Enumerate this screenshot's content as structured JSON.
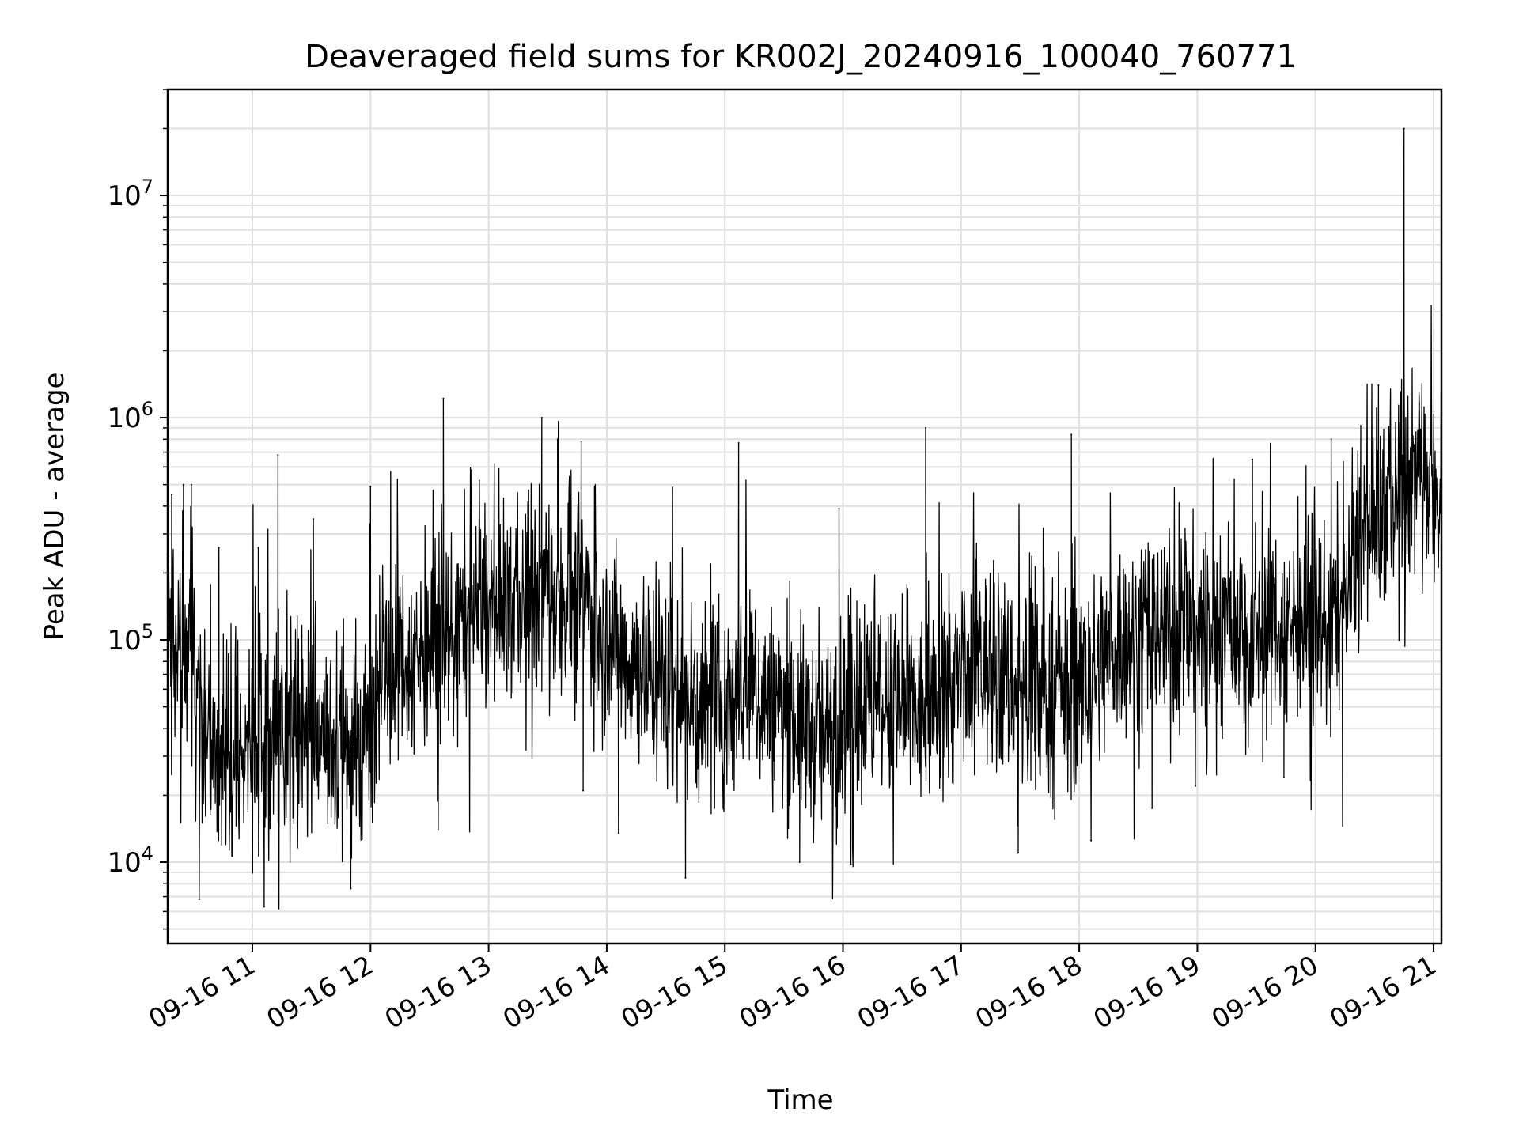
{
  "chart_data": {
    "type": "line",
    "title": "Deaveraged field sums for KR002J_20240916_100040_760771",
    "xlabel": "Time",
    "ylabel": "Peak ADU - average",
    "yscale": "log",
    "grid": true,
    "line_color": "#000000",
    "grid_color": "#e0e0e0",
    "xlim": [
      "2024-09-16 10:17",
      "2024-09-16 21:04"
    ],
    "ylim": [
      4300,
      30000000
    ],
    "x_ticks": [
      {
        "t": "2024-09-16 11:00",
        "label": "09-16 11"
      },
      {
        "t": "2024-09-16 12:00",
        "label": "09-16 12"
      },
      {
        "t": "2024-09-16 13:00",
        "label": "09-16 13"
      },
      {
        "t": "2024-09-16 14:00",
        "label": "09-16 14"
      },
      {
        "t": "2024-09-16 15:00",
        "label": "09-16 15"
      },
      {
        "t": "2024-09-16 16:00",
        "label": "09-16 16"
      },
      {
        "t": "2024-09-16 17:00",
        "label": "09-16 17"
      },
      {
        "t": "2024-09-16 18:00",
        "label": "09-16 18"
      },
      {
        "t": "2024-09-16 19:00",
        "label": "09-16 19"
      },
      {
        "t": "2024-09-16 20:00",
        "label": "09-16 20"
      },
      {
        "t": "2024-09-16 21:00",
        "label": "09-16 21"
      }
    ],
    "y_ticks": [
      {
        "value": 10000,
        "base": "10",
        "exp": "4"
      },
      {
        "value": 100000,
        "base": "10",
        "exp": "5"
      },
      {
        "value": 1000000,
        "base": "10",
        "exp": "6"
      },
      {
        "value": 10000000,
        "base": "10",
        "exp": "7"
      }
    ],
    "trend": [
      {
        "t": "2024-09-16 10:17",
        "y": 150000
      },
      {
        "t": "2024-09-16 10:25",
        "y": 100000
      },
      {
        "t": "2024-09-16 10:35",
        "y": 40000
      },
      {
        "t": "2024-09-16 10:45",
        "y": 28000
      },
      {
        "t": "2024-09-16 11:00",
        "y": 35000
      },
      {
        "t": "2024-09-16 11:20",
        "y": 40000
      },
      {
        "t": "2024-09-16 11:40",
        "y": 30000
      },
      {
        "t": "2024-09-16 11:55",
        "y": 35000
      },
      {
        "t": "2024-09-16 12:10",
        "y": 80000
      },
      {
        "t": "2024-09-16 12:30",
        "y": 90000
      },
      {
        "t": "2024-09-16 12:50",
        "y": 130000
      },
      {
        "t": "2024-09-16 13:10",
        "y": 140000
      },
      {
        "t": "2024-09-16 13:25",
        "y": 160000
      },
      {
        "t": "2024-09-16 13:40",
        "y": 180000
      },
      {
        "t": "2024-09-16 13:50",
        "y": 150000
      },
      {
        "t": "2024-09-16 14:05",
        "y": 90000
      },
      {
        "t": "2024-09-16 14:30",
        "y": 65000
      },
      {
        "t": "2024-09-16 14:50",
        "y": 45000
      },
      {
        "t": "2024-09-16 15:10",
        "y": 60000
      },
      {
        "t": "2024-09-16 15:35",
        "y": 45000
      },
      {
        "t": "2024-09-16 15:50",
        "y": 35000
      },
      {
        "t": "2024-09-16 16:10",
        "y": 50000
      },
      {
        "t": "2024-09-16 16:40",
        "y": 45000
      },
      {
        "t": "2024-09-16 16:55",
        "y": 60000
      },
      {
        "t": "2024-09-16 17:10",
        "y": 80000
      },
      {
        "t": "2024-09-16 17:30",
        "y": 60000
      },
      {
        "t": "2024-09-16 17:45",
        "y": 55000
      },
      {
        "t": "2024-09-16 18:05",
        "y": 65000
      },
      {
        "t": "2024-09-16 18:20",
        "y": 100000
      },
      {
        "t": "2024-09-16 18:50",
        "y": 110000
      },
      {
        "t": "2024-09-16 19:20",
        "y": 110000
      },
      {
        "t": "2024-09-16 19:40",
        "y": 120000
      },
      {
        "t": "2024-09-16 20:00",
        "y": 120000
      },
      {
        "t": "2024-09-16 20:15",
        "y": 140000
      },
      {
        "t": "2024-09-16 20:25",
        "y": 300000
      },
      {
        "t": "2024-09-16 20:40",
        "y": 450000
      },
      {
        "t": "2024-09-16 20:55",
        "y": 600000
      },
      {
        "t": "2024-09-16 21:04",
        "y": 550000
      }
    ],
    "spikes": [
      {
        "t": "2024-09-16 10:19",
        "y": 450000
      },
      {
        "t": "2024-09-16 10:25",
        "y": 500000
      },
      {
        "t": "2024-09-16 10:29",
        "y": 500000
      },
      {
        "t": "2024-09-16 10:33",
        "y": 6800
      },
      {
        "t": "2024-09-16 10:43",
        "y": 260000
      },
      {
        "t": "2024-09-16 11:03",
        "y": 260000
      },
      {
        "t": "2024-09-16 11:06",
        "y": 6300
      },
      {
        "t": "2024-09-16 11:13",
        "y": 680000
      },
      {
        "t": "2024-09-16 11:31",
        "y": 350000
      },
      {
        "t": "2024-09-16 11:50",
        "y": 7600
      },
      {
        "t": "2024-09-16 12:00",
        "y": 490000
      },
      {
        "t": "2024-09-16 12:37",
        "y": 1220000
      },
      {
        "t": "2024-09-16 12:51",
        "y": 580000
      },
      {
        "t": "2024-09-16 13:27",
        "y": 1000000
      },
      {
        "t": "2024-09-16 13:35",
        "y": 800000
      },
      {
        "t": "2024-09-16 13:47",
        "y": 780000
      },
      {
        "t": "2024-09-16 13:48",
        "y": 21000
      },
      {
        "t": "2024-09-16 14:06",
        "y": 13500
      },
      {
        "t": "2024-09-16 14:40",
        "y": 8500
      },
      {
        "t": "2024-09-16 15:07",
        "y": 770000
      },
      {
        "t": "2024-09-16 15:38",
        "y": 10000
      },
      {
        "t": "2024-09-16 15:58",
        "y": 390000
      },
      {
        "t": "2024-09-16 16:04",
        "y": 9800
      },
      {
        "t": "2024-09-16 16:42",
        "y": 900000
      },
      {
        "t": "2024-09-16 17:29",
        "y": 11000
      },
      {
        "t": "2024-09-16 17:56",
        "y": 840000
      },
      {
        "t": "2024-09-16 18:06",
        "y": 12500
      },
      {
        "t": "2024-09-16 18:37",
        "y": 17500
      },
      {
        "t": "2024-09-16 18:59",
        "y": 22000
      },
      {
        "t": "2024-09-16 19:28",
        "y": 650000
      },
      {
        "t": "2024-09-16 19:44",
        "y": 24000
      },
      {
        "t": "2024-09-16 20:08",
        "y": 800000
      },
      {
        "t": "2024-09-16 20:23",
        "y": 920000
      },
      {
        "t": "2024-09-16 20:32",
        "y": 1400000
      },
      {
        "t": "2024-09-16 20:45",
        "y": 20000000
      }
    ]
  }
}
